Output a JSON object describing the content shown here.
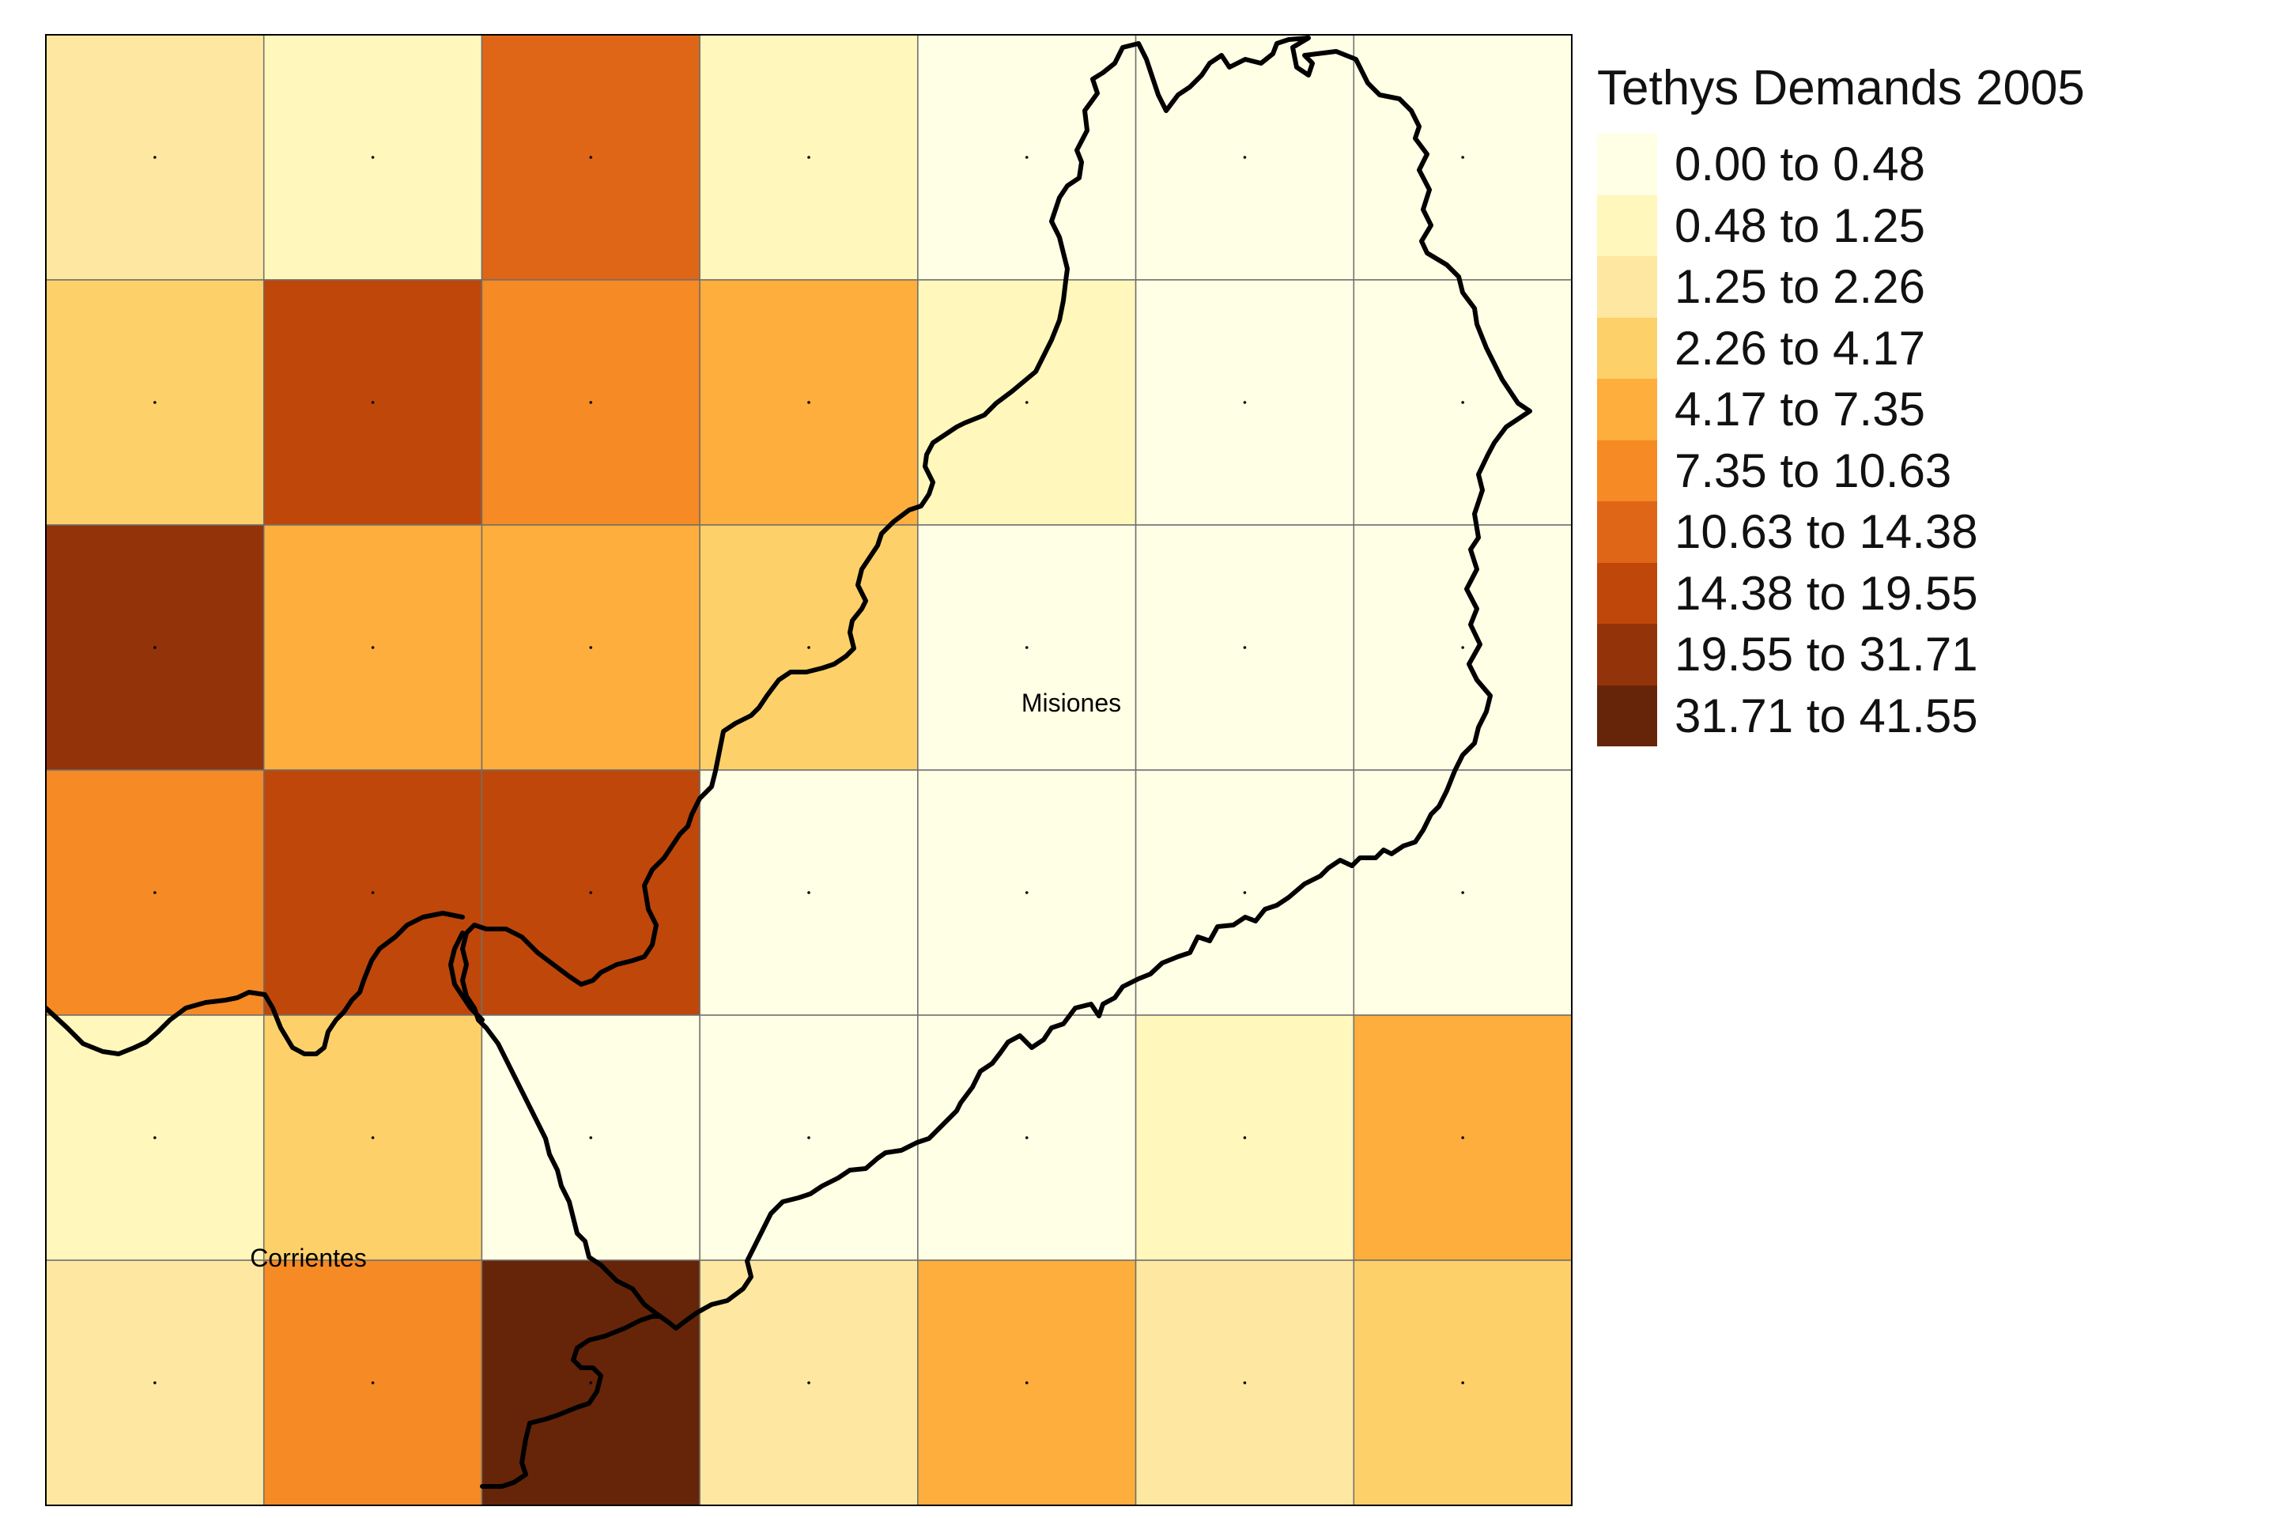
{
  "map_title": "Tethys Demands 2005",
  "legend": [
    {
      "label": "0.00 to 0.48",
      "color": "#FFFFE5"
    },
    {
      "label": "0.48 to 1.25",
      "color": "#FFF7BC"
    },
    {
      "label": "1.25 to 2.26",
      "color": "#FEE8A1"
    },
    {
      "label": "2.26 to 4.17",
      "color": "#FED06A"
    },
    {
      "label": "4.17 to 7.35",
      "color": "#FEAE3C"
    },
    {
      "label": "7.35 to 10.63",
      "color": "#F68A24"
    },
    {
      "label": "10.63 to 14.38",
      "color": "#E06617"
    },
    {
      "label": "14.38 to 19.55",
      "color": "#BF470A"
    },
    {
      "label": "19.55 to 31.71",
      "color": "#93330A"
    },
    {
      "label": "31.71 to 41.55",
      "color": "#662508"
    }
  ],
  "grid": {
    "rows": 6,
    "cols": 7,
    "class_index": [
      [
        2,
        1,
        6,
        1,
        0,
        0,
        0
      ],
      [
        3,
        7,
        5,
        4,
        1,
        0,
        0
      ],
      [
        8,
        4,
        4,
        3,
        0,
        0,
        0
      ],
      [
        5,
        7,
        7,
        0,
        0,
        0,
        0
      ],
      [
        1,
        3,
        0,
        0,
        0,
        1,
        4
      ],
      [
        2,
        5,
        9,
        2,
        4,
        2,
        3
      ]
    ]
  },
  "place_labels": {
    "misiones": "Misiones",
    "corrientes": "Corrientes"
  }
}
